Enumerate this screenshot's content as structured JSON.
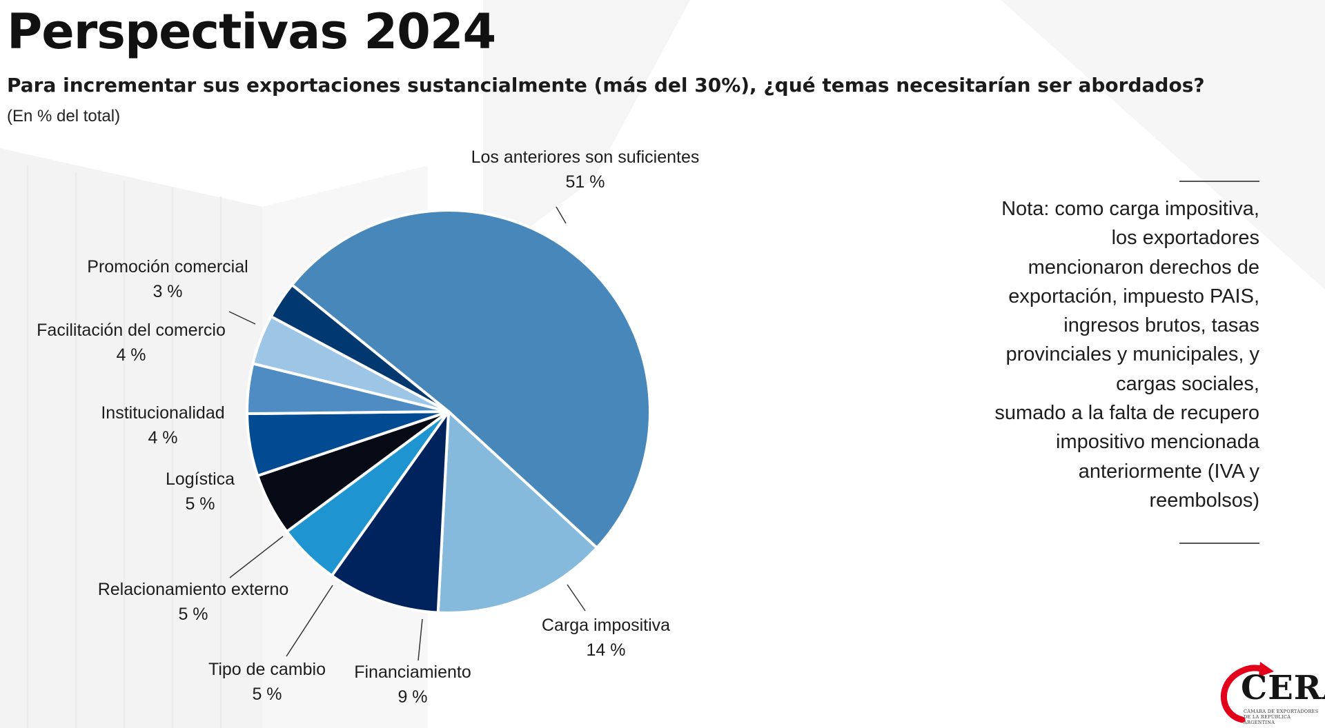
{
  "header": {
    "title": "Perspectivas 2024",
    "subtitle": "Para incrementar sus exportaciones sustancialmente (más del 30%), ¿qué temas necesitarían ser abordados?",
    "units": "(En % del total)"
  },
  "chart_data": {
    "type": "pie",
    "start_angle_deg": -51,
    "direction": "clockwise",
    "legend": "none",
    "slices": [
      {
        "label": "Los anteriores son suficientes",
        "value": 51,
        "value_label": "51 %",
        "color": "#4787BA"
      },
      {
        "label": "Carga impositiva",
        "value": 14,
        "value_label": "14 %",
        "color": "#86BADD"
      },
      {
        "label": "Financiamiento",
        "value": 9,
        "value_label": "9 %",
        "color": "#00235E"
      },
      {
        "label": "Tipo de cambio",
        "value": 5,
        "value_label": "5 %",
        "color": "#1E95D0"
      },
      {
        "label": "Relacionamiento externo",
        "value": 5,
        "value_label": "5 %",
        "color": "#050A14"
      },
      {
        "label": "Logística",
        "value": 5,
        "value_label": "5 %",
        "color": "#024A91"
      },
      {
        "label": "Institucionalidad",
        "value": 4,
        "value_label": "4 %",
        "color": "#4E8CC3"
      },
      {
        "label": "Facilitación del comercio",
        "value": 4,
        "value_label": "4 %",
        "color": "#9DC6E6"
      },
      {
        "label": "Promoción comercial",
        "value": 3,
        "value_label": "3 %",
        "color": "#00386F"
      }
    ]
  },
  "note": {
    "lines": [
      "Nota: como carga impositiva,",
      "los exportadores",
      "mencionaron derechos de",
      "exportación, impuesto PAIS,",
      "ingresos brutos, tasas",
      "provinciales y municipales, y",
      "cargas sociales,",
      "sumado a la falta de recupero",
      "impositivo mencionada",
      "anteriormente (IVA y",
      "reembolsos)"
    ]
  },
  "logo": {
    "name": "CERA",
    "subtitle_line1": "CÁMARA DE EXPORTADORES",
    "subtitle_line2": "DE LA REPÚBLICA ARGENTINA",
    "accent_color": "#E3001B"
  }
}
